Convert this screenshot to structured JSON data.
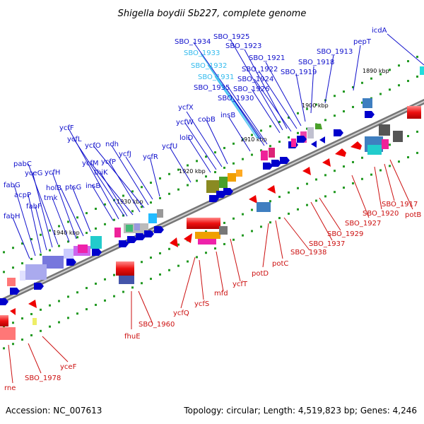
{
  "title": "Shigella boydii Sb227, complete genome",
  "footer": {
    "accession": "Accession: NC_007613",
    "summary": "Topology: circular; Length: 4,519,823 bp; Genes: 4,246"
  },
  "colors": {
    "top_strand_label": "#1010cc",
    "bottom_strand_label": "#cc1010",
    "highlight_label": "#33bbee",
    "backbone": "#888888",
    "tick": "#229922"
  },
  "ticks": [
    "1890 kbp",
    "1900 kbp",
    "1910 kbp",
    "1920 kbp",
    "1930 kbp",
    "1940 kbp"
  ],
  "top_labels": [
    "icdA",
    "pepT",
    "SBO_1913",
    "SBO_1918",
    "SBO_1919",
    "SBO_1921",
    "SBO_1922",
    "SBO_1924",
    "SBO_1923",
    "SBO_1925",
    "SBO_1926",
    "SBO_1934",
    "SBO_1933",
    "SBO_1932",
    "SBO_1931",
    "SBO_1935",
    "SBO_1930",
    "insB",
    "cobB",
    "ycfX",
    "ycfW",
    "lolD",
    "ycfU",
    "ycfR",
    "ycfJ",
    "ndh",
    "ycfO",
    "ycfP",
    "ycfM",
    "thiK",
    "ycfL",
    "ycfF",
    "insB",
    "ptsG",
    "holB",
    "ycfH",
    "tmk",
    "pabC",
    "yceG",
    "fabF",
    "acpP",
    "fabG",
    "fabH"
  ],
  "bottom_labels": [
    "potB",
    "SBO_1917",
    "SBO_1920",
    "SBO_1927",
    "SBO_1929",
    "SBO_1937",
    "SBO_1938",
    "potC",
    "potD",
    "ycfT",
    "mfd",
    "ycfS",
    "ycfQ",
    "SBO_1960",
    "fhuE",
    "yceF",
    "SBO_1978",
    "rne"
  ]
}
